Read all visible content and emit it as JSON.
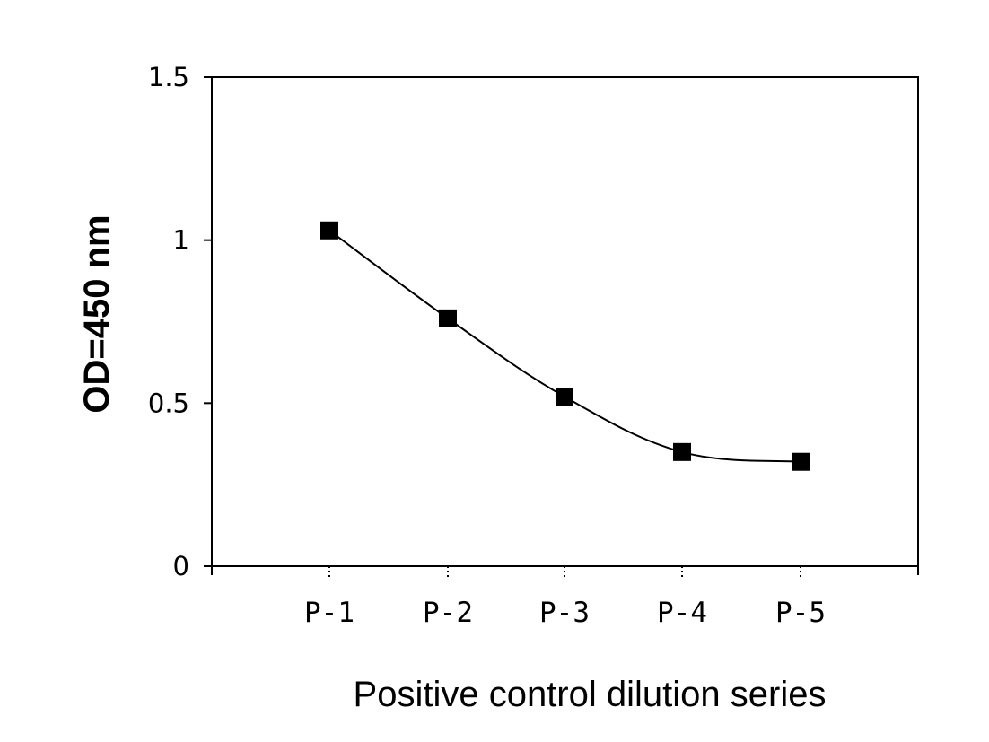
{
  "chart_data": {
    "type": "line",
    "title": "",
    "xlabel": "Positive control dilution series",
    "ylabel": "OD=450 nm",
    "categories": [
      "P-1",
      "P-2",
      "P-3",
      "P-4",
      "P-5"
    ],
    "series": [
      {
        "values": [
          1.03,
          0.76,
          0.52,
          0.35,
          0.32
        ],
        "marker": "square",
        "color": "#000000"
      }
    ],
    "ylim": [
      0,
      1.5
    ],
    "yticks": [
      0,
      0.5,
      1,
      1.5
    ],
    "ytick_labels": [
      "0",
      "0.5",
      "1",
      "1.5"
    ],
    "grid": false,
    "legend": "none"
  }
}
